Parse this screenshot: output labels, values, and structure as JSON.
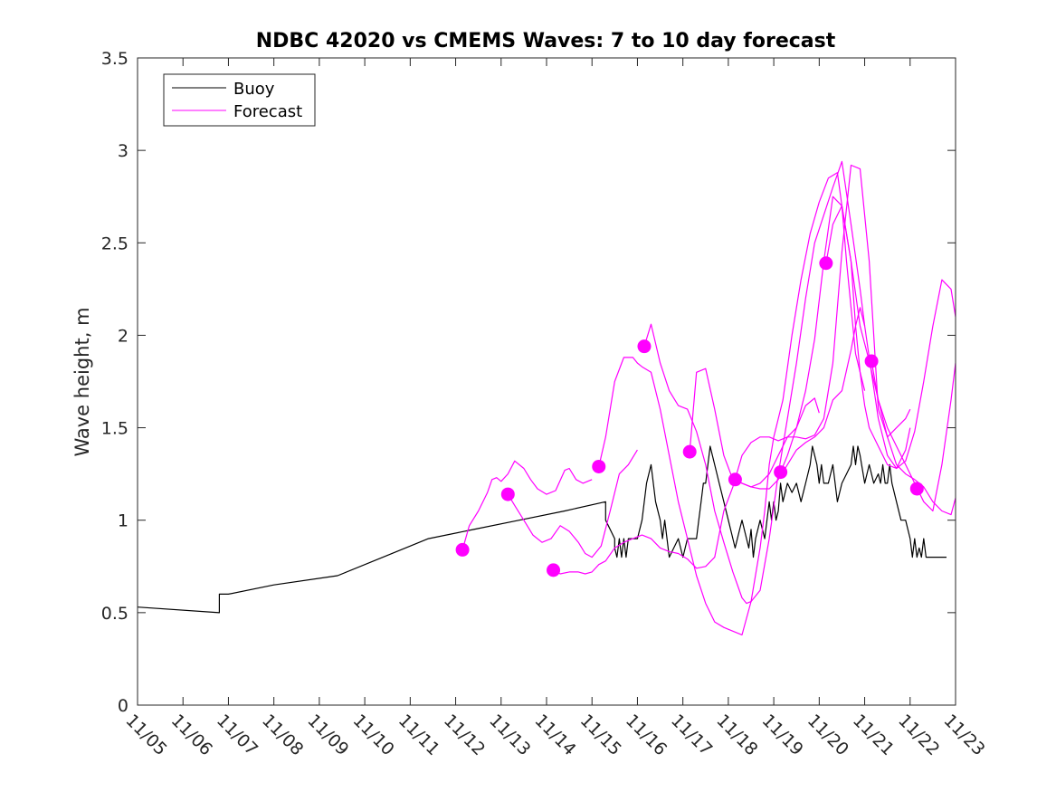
{
  "chart_data": {
    "type": "line",
    "title": "NDBC 42020 vs CMEMS Waves: 7 to 10 day forecast",
    "xlabel": "",
    "ylabel": "Wave height, m",
    "xlim": [
      0,
      18
    ],
    "ylim": [
      0,
      3.5
    ],
    "x_ticks": [
      0,
      1,
      2,
      3,
      4,
      5,
      6,
      7,
      8,
      9,
      10,
      11,
      12,
      13,
      14,
      15,
      16,
      17,
      18
    ],
    "x_tick_labels": [
      "11/05",
      "11/06",
      "11/07",
      "11/08",
      "11/09",
      "11/10",
      "11/11",
      "11/12",
      "11/13",
      "11/14",
      "11/15",
      "11/16",
      "11/17",
      "11/18",
      "11/19",
      "11/20",
      "11/21",
      "11/22",
      "11/23"
    ],
    "y_ticks": [
      0,
      0.5,
      1,
      1.5,
      2,
      2.5,
      3,
      3.5
    ],
    "y_tick_labels": [
      "0",
      "0.5",
      "1",
      "1.5",
      "2",
      "2.5",
      "3",
      "3.5"
    ],
    "legend": {
      "position": "top-left",
      "entries": [
        {
          "label": "Buoy",
          "color": "#000000"
        },
        {
          "label": "Forecast",
          "color": "#ff00ff"
        }
      ]
    },
    "colors": {
      "buoy": "#000000",
      "forecast": "#ff00ff",
      "axis": "#262626"
    },
    "series": [
      {
        "name": "Buoy",
        "color": "#000000",
        "x": [
          0,
          1.8,
          1.8,
          2.0,
          3.0,
          4.4,
          5.4,
          6.4,
          7.4,
          8.4,
          9.4,
          10.3,
          10.3,
          10.5,
          10.5,
          10.55,
          10.6,
          10.65,
          10.7,
          10.75,
          10.8,
          10.85,
          10.9,
          10.95,
          11.0,
          11.1,
          11.2,
          11.3,
          11.4,
          11.5,
          11.55,
          11.6,
          11.65,
          11.7,
          11.8,
          11.9,
          12.0,
          12.05,
          12.1,
          12.15,
          12.2,
          12.3,
          12.35,
          12.4,
          12.45,
          12.5,
          12.55,
          12.6,
          12.7,
          12.8,
          12.9,
          13.0,
          13.1,
          13.15,
          13.2,
          13.25,
          13.3,
          13.4,
          13.45,
          13.5,
          13.55,
          13.6,
          13.7,
          13.8,
          13.85,
          13.9,
          13.95,
          14.0,
          14.05,
          14.1,
          14.15,
          14.2,
          14.3,
          14.4,
          14.5,
          14.6,
          14.7,
          14.8,
          14.85,
          14.9,
          14.95,
          15.0,
          15.05,
          15.1,
          15.2,
          15.3,
          15.4,
          15.5,
          15.6,
          15.7,
          15.75,
          15.8,
          15.85,
          15.9,
          16.0,
          16.1,
          16.2,
          16.3,
          16.35,
          16.4,
          16.45,
          16.5,
          16.55,
          16.6,
          16.7,
          16.8,
          16.9,
          17.0,
          17.05,
          17.1,
          17.15,
          17.2,
          17.25,
          17.3,
          17.35,
          17.4,
          17.5,
          17.6,
          17.7,
          17.8,
          17.8
        ],
        "y": [
          0.53,
          0.5,
          0.6,
          0.6,
          0.65,
          0.7,
          0.8,
          0.9,
          0.95,
          1.0,
          1.05,
          1.1,
          1.0,
          0.9,
          0.85,
          0.8,
          0.9,
          0.8,
          0.9,
          0.8,
          0.9,
          0.9,
          0.9,
          0.9,
          0.9,
          1.0,
          1.2,
          1.3,
          1.1,
          1.0,
          0.9,
          1.0,
          0.9,
          0.8,
          0.85,
          0.9,
          0.8,
          0.85,
          0.9,
          0.9,
          0.9,
          0.9,
          1.0,
          1.1,
          1.2,
          1.2,
          1.3,
          1.4,
          1.3,
          1.2,
          1.1,
          1.0,
          0.9,
          0.85,
          0.9,
          0.95,
          1.0,
          0.9,
          0.85,
          0.95,
          0.8,
          0.9,
          1.0,
          0.9,
          1.0,
          1.1,
          1.0,
          1.1,
          1.0,
          1.05,
          1.2,
          1.1,
          1.2,
          1.15,
          1.2,
          1.1,
          1.2,
          1.3,
          1.4,
          1.35,
          1.3,
          1.2,
          1.3,
          1.2,
          1.2,
          1.3,
          1.1,
          1.2,
          1.25,
          1.3,
          1.4,
          1.3,
          1.4,
          1.35,
          1.2,
          1.3,
          1.2,
          1.25,
          1.2,
          1.3,
          1.2,
          1.2,
          1.3,
          1.2,
          1.1,
          1.0,
          1.0,
          0.9,
          0.8,
          0.9,
          0.8,
          0.85,
          0.8,
          0.9,
          0.8,
          0.8,
          0.8,
          0.8,
          0.8,
          0.8,
          0.8
        ]
      },
      {
        "name": "Forecast 11/12",
        "color": "#ff00ff",
        "x": [
          7.15,
          7.3,
          7.5,
          7.7,
          7.8,
          7.9,
          8.0,
          8.15,
          8.3,
          8.5,
          8.65,
          8.8,
          9.0,
          9.2,
          9.4,
          9.5,
          9.65,
          9.8,
          10.0
        ],
        "y": [
          0.84,
          0.97,
          1.05,
          1.15,
          1.22,
          1.23,
          1.21,
          1.25,
          1.32,
          1.28,
          1.22,
          1.17,
          1.14,
          1.16,
          1.27,
          1.28,
          1.22,
          1.2,
          1.22
        ]
      },
      {
        "name": "Forecast 11/13",
        "color": "#ff00ff",
        "x": [
          8.15,
          8.3,
          8.5,
          8.7,
          8.9,
          9.1,
          9.3,
          9.5,
          9.7,
          9.85,
          10.0,
          10.2,
          10.4,
          10.6,
          10.8,
          11.0
        ],
        "y": [
          1.14,
          1.08,
          1.0,
          0.92,
          0.88,
          0.9,
          0.97,
          0.94,
          0.88,
          0.82,
          0.8,
          0.86,
          1.05,
          1.25,
          1.3,
          1.38
        ]
      },
      {
        "name": "Forecast 11/14",
        "color": "#ff00ff",
        "x": [
          9.15,
          9.3,
          9.5,
          9.7,
          9.85,
          10.0,
          10.15,
          10.3,
          10.5,
          10.7,
          10.9,
          11.1,
          11.3,
          11.5,
          11.7,
          11.9,
          12.1,
          12.3,
          12.5,
          12.7,
          12.9,
          13.1,
          13.3,
          13.5,
          13.7,
          13.9,
          14.1,
          14.3,
          14.5,
          14.7,
          14.9,
          15.0
        ],
        "y": [
          0.73,
          0.71,
          0.72,
          0.72,
          0.71,
          0.72,
          0.76,
          0.78,
          0.85,
          0.88,
          0.9,
          0.92,
          0.9,
          0.85,
          0.83,
          0.82,
          0.79,
          0.74,
          0.75,
          0.8,
          1.05,
          1.18,
          1.35,
          1.42,
          1.45,
          1.45,
          1.43,
          1.45,
          1.5,
          1.62,
          1.66,
          1.58
        ]
      },
      {
        "name": "Forecast 11/15",
        "color": "#ff00ff",
        "x": [
          10.15,
          10.3,
          10.5,
          10.7,
          10.9,
          11.0,
          11.1,
          11.3,
          11.5,
          11.7,
          11.9,
          12.1,
          12.3,
          12.5,
          12.7,
          12.9,
          13.1,
          13.3,
          13.5,
          13.7,
          13.8,
          13.9,
          14.0,
          14.2,
          14.4,
          14.6,
          14.8,
          15.0,
          15.2,
          15.4,
          15.5,
          15.6,
          15.7,
          15.8,
          16.0
        ],
        "y": [
          1.29,
          1.45,
          1.75,
          1.88,
          1.88,
          1.85,
          1.83,
          1.8,
          1.6,
          1.35,
          1.1,
          0.9,
          0.7,
          0.55,
          0.45,
          0.42,
          0.4,
          0.38,
          0.56,
          0.85,
          1.05,
          1.3,
          1.45,
          1.65,
          2.0,
          2.3,
          2.55,
          2.72,
          2.85,
          2.88,
          2.7,
          2.4,
          2.15,
          1.9,
          1.7
        ]
      },
      {
        "name": "Forecast 11/16",
        "color": "#ff00ff",
        "x": [
          11.15,
          11.3,
          11.5,
          11.7,
          11.9,
          12.1,
          12.3,
          12.5,
          12.7,
          12.9,
          13.0,
          13.1,
          13.3,
          13.4,
          13.5,
          13.7,
          13.9,
          14.1,
          14.3,
          14.5,
          14.7,
          14.9,
          15.1,
          15.3,
          15.5,
          15.7,
          15.9,
          16.0
        ],
        "y": [
          1.94,
          2.06,
          1.85,
          1.7,
          1.62,
          1.6,
          1.48,
          1.3,
          1.05,
          0.88,
          0.8,
          0.72,
          0.58,
          0.55,
          0.56,
          0.62,
          0.9,
          1.25,
          1.55,
          1.85,
          2.2,
          2.5,
          2.65,
          2.8,
          2.94,
          2.6,
          2.25,
          2.05
        ]
      },
      {
        "name": "Forecast 11/17",
        "color": "#ff00ff",
        "x": [
          12.15,
          12.3,
          12.5,
          12.7,
          12.9,
          13.1,
          13.3,
          13.5,
          13.7,
          13.9,
          14.1,
          14.3,
          14.5,
          14.7,
          14.9,
          15.1,
          15.3,
          15.5,
          15.7,
          15.8,
          15.9,
          16.0,
          16.1,
          16.3,
          16.5,
          16.7,
          16.9,
          17.0
        ],
        "y": [
          1.37,
          1.8,
          1.82,
          1.6,
          1.35,
          1.22,
          1.2,
          1.18,
          1.17,
          1.17,
          1.22,
          1.3,
          1.38,
          1.42,
          1.45,
          1.5,
          1.65,
          1.7,
          1.92,
          2.05,
          2.15,
          2.05,
          1.88,
          1.55,
          1.35,
          1.28,
          1.38,
          1.5
        ]
      },
      {
        "name": "Forecast 11/18",
        "color": "#ff00ff",
        "x": [
          13.15,
          13.3,
          13.5,
          13.7,
          13.9,
          14.1,
          14.3,
          14.5,
          14.7,
          14.9,
          15.1,
          15.3,
          15.5,
          15.7,
          15.9,
          16.1,
          16.2,
          16.3,
          16.5,
          16.7,
          16.9,
          17.0
        ],
        "y": [
          1.22,
          1.2,
          1.18,
          1.2,
          1.25,
          1.35,
          1.45,
          1.45,
          1.44,
          1.46,
          1.55,
          1.85,
          2.45,
          2.92,
          2.9,
          2.4,
          2.0,
          1.6,
          1.45,
          1.5,
          1.55,
          1.6
        ]
      },
      {
        "name": "Forecast 11/19",
        "color": "#ff00ff",
        "x": [
          14.15,
          14.3,
          14.5,
          14.7,
          14.9,
          15.1,
          15.3,
          15.5,
          15.7,
          15.9,
          16.1,
          16.3,
          16.5,
          16.7,
          16.9,
          17.1,
          17.3,
          17.5,
          17.7,
          17.9,
          18.0
        ],
        "y": [
          1.26,
          1.35,
          1.5,
          1.7,
          1.98,
          2.4,
          2.75,
          2.7,
          2.4,
          2.05,
          1.86,
          1.65,
          1.45,
          1.3,
          1.25,
          1.22,
          1.18,
          1.1,
          1.05,
          1.03,
          1.12
        ]
      },
      {
        "name": "Forecast 11/20",
        "color": "#ff00ff",
        "x": [
          15.15,
          15.3,
          15.5,
          15.7,
          15.8,
          15.9,
          16.0,
          16.1,
          16.3,
          16.5,
          16.7,
          16.9,
          17.1,
          17.3,
          17.5,
          17.7,
          17.9,
          18.0
        ],
        "y": [
          2.39,
          2.6,
          2.7,
          2.4,
          2.05,
          1.8,
          1.62,
          1.5,
          1.4,
          1.3,
          1.28,
          1.32,
          1.48,
          1.75,
          2.05,
          2.3,
          2.25,
          2.1
        ]
      },
      {
        "name": "Forecast 11/21",
        "color": "#ff00ff",
        "x": [
          16.15,
          16.3,
          16.5,
          16.7,
          16.9,
          17.0,
          17.1,
          17.3,
          17.5,
          17.7,
          17.9,
          18.0
        ],
        "y": [
          1.86,
          1.65,
          1.5,
          1.4,
          1.3,
          1.25,
          1.2,
          1.1,
          1.05,
          1.3,
          1.65,
          1.85
        ]
      }
    ],
    "forecast_start_markers": [
      {
        "x": 7.15,
        "y": 0.84
      },
      {
        "x": 8.15,
        "y": 1.14
      },
      {
        "x": 9.15,
        "y": 0.73
      },
      {
        "x": 10.15,
        "y": 1.29
      },
      {
        "x": 11.15,
        "y": 1.94
      },
      {
        "x": 12.15,
        "y": 1.37
      },
      {
        "x": 13.15,
        "y": 1.22
      },
      {
        "x": 14.15,
        "y": 1.26
      },
      {
        "x": 15.15,
        "y": 2.39
      },
      {
        "x": 16.15,
        "y": 1.86
      },
      {
        "x": 17.15,
        "y": 1.17
      }
    ]
  }
}
